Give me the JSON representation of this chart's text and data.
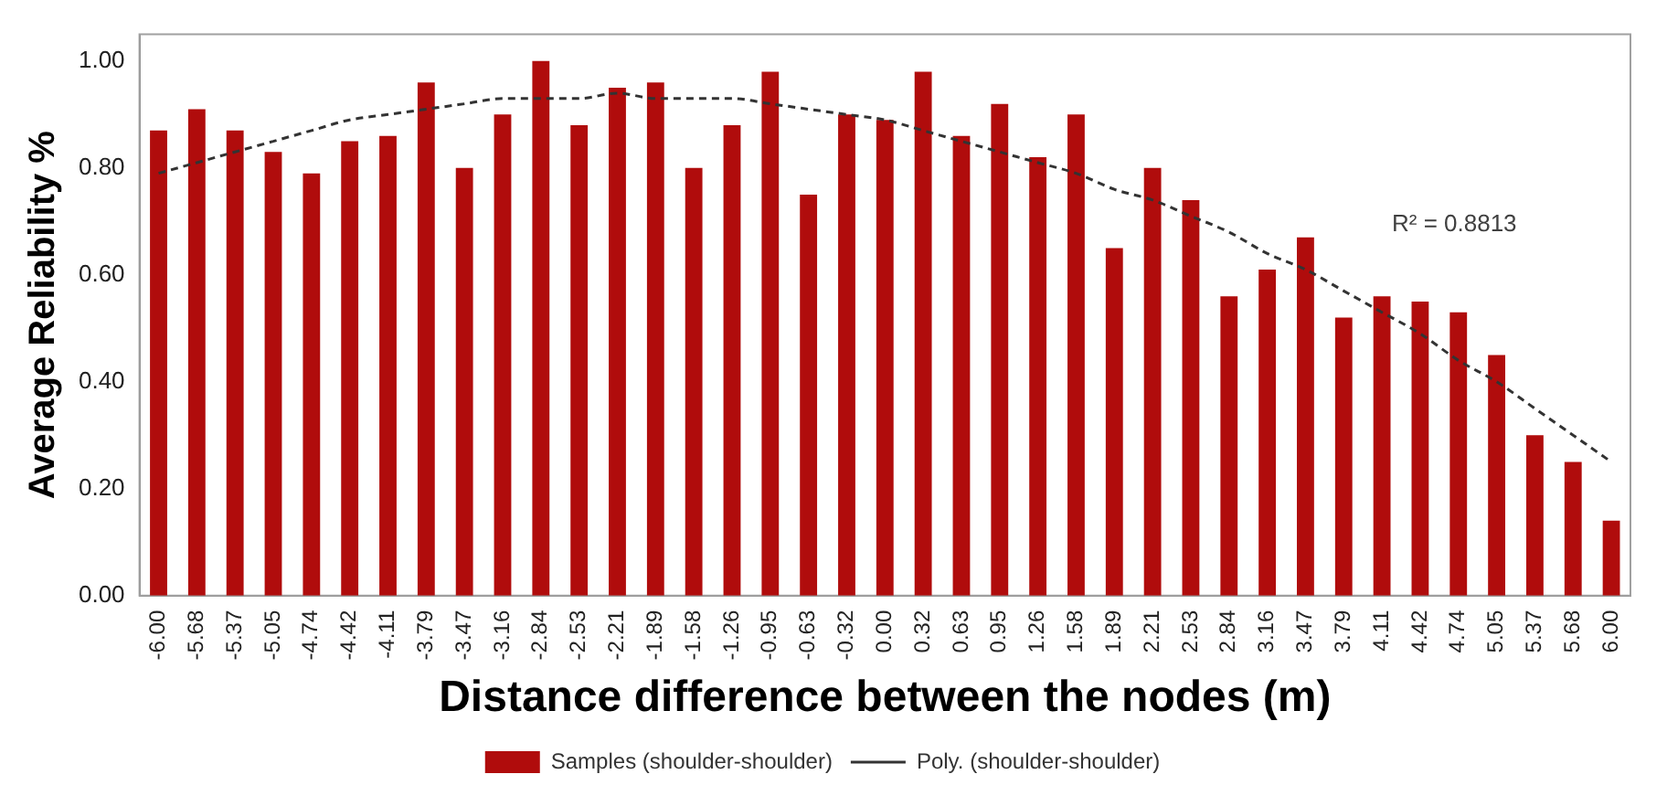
{
  "chart_data": {
    "type": "bar",
    "xlabel": "Distance difference between the nodes (m)",
    "ylabel": "Average Reliability %",
    "categories": [
      "-6.00",
      "-5.68",
      "-5.37",
      "-5.05",
      "-4.74",
      "-4.42",
      "-4.11",
      "-3.79",
      "-3.47",
      "-3.16",
      "-2.84",
      "-2.53",
      "-2.21",
      "-1.89",
      "-1.58",
      "-1.26",
      "-0.95",
      "-0.63",
      "-0.32",
      "0.00",
      "0.32",
      "0.63",
      "0.95",
      "1.26",
      "1.58",
      "1.89",
      "2.21",
      "2.53",
      "2.84",
      "3.16",
      "3.47",
      "3.79",
      "4.11",
      "4.42",
      "4.74",
      "5.05",
      "5.37",
      "5.68",
      "6.00"
    ],
    "series": [
      {
        "name": "Samples (shoulder-shoulder)",
        "color": "#b00c0c",
        "values": [
          0.87,
          0.91,
          0.87,
          0.83,
          0.79,
          0.85,
          0.86,
          0.96,
          0.8,
          0.9,
          1.0,
          0.88,
          0.95,
          0.96,
          0.8,
          0.88,
          0.98,
          0.75,
          0.9,
          0.89,
          0.98,
          0.86,
          0.92,
          0.82,
          0.9,
          0.65,
          0.8,
          0.74,
          0.56,
          0.61,
          0.67,
          0.52,
          0.56,
          0.55,
          0.53,
          0.45,
          0.3,
          0.25,
          0.14
        ]
      },
      {
        "name": "Poly. (shoulder-shoulder)",
        "type": "line",
        "color": "#333333",
        "line_style": "dashed",
        "marker": "none",
        "values": [
          0.79,
          0.81,
          0.83,
          0.85,
          0.87,
          0.89,
          0.9,
          0.91,
          0.92,
          0.93,
          0.93,
          0.93,
          0.94,
          0.93,
          0.93,
          0.93,
          0.92,
          0.91,
          0.9,
          0.89,
          0.87,
          0.85,
          0.83,
          0.81,
          0.79,
          0.76,
          0.74,
          0.71,
          0.68,
          0.64,
          0.61,
          0.57,
          0.53,
          0.49,
          0.44,
          0.4,
          0.35,
          0.3,
          0.25
        ]
      }
    ],
    "ylim": [
      0,
      1.05
    ],
    "yticks": [
      {
        "value": 0,
        "label": "0.00"
      },
      {
        "value": 0.2,
        "label": "0.20"
      },
      {
        "value": 0.4,
        "label": "0.40"
      },
      {
        "value": 0.6,
        "label": "0.60"
      },
      {
        "value": 0.8,
        "label": "0.80"
      },
      {
        "value": 1,
        "label": "1.00"
      }
    ],
    "annotations": [
      "R² = 0.8813"
    ],
    "grid": false,
    "legend": "bottom"
  }
}
